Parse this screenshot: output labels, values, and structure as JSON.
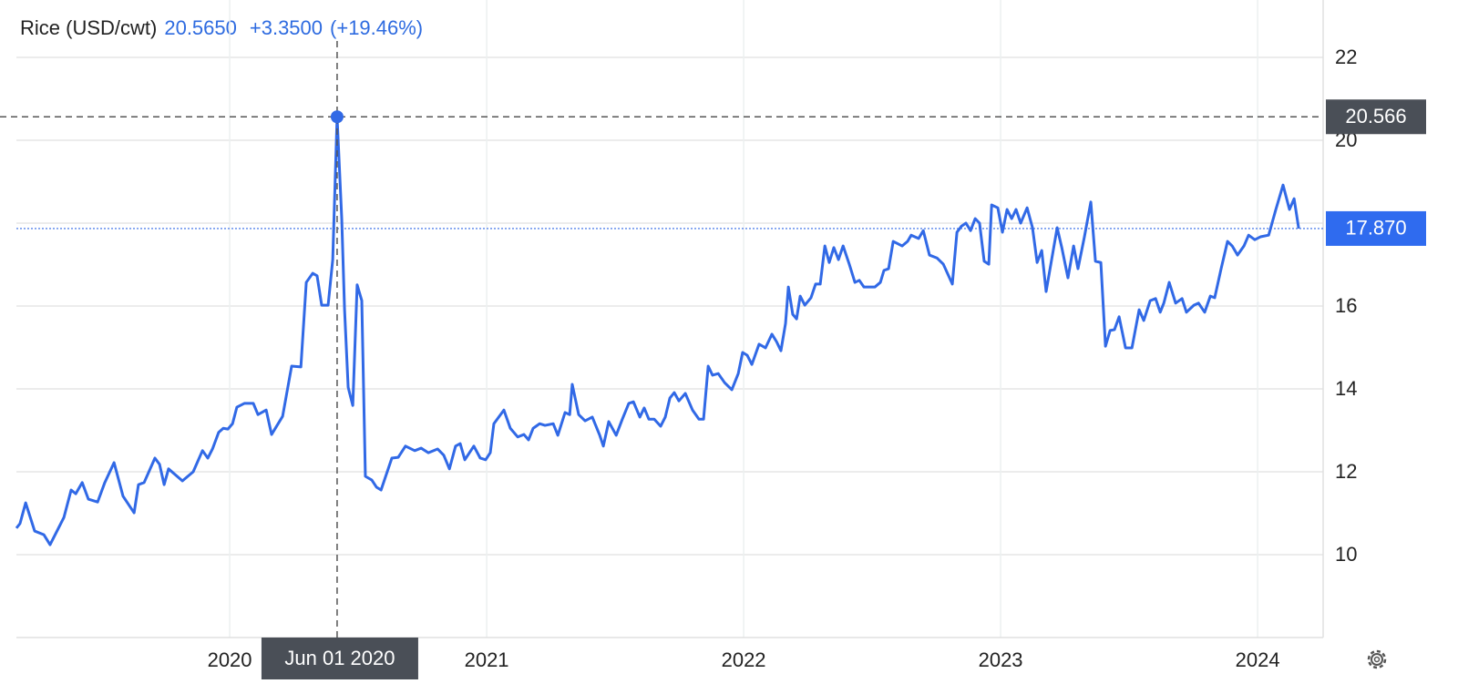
{
  "chart_data": {
    "type": "line",
    "title": "Rice (USD/cwt)",
    "quote": "20.5650",
    "change": "+3.3500",
    "change_pct": "(+19.46%)",
    "x": [
      2019.17,
      2019.184,
      2019.206,
      2019.241,
      2019.277,
      2019.301,
      2019.355,
      2019.383,
      2019.401,
      2019.426,
      2019.45,
      2019.486,
      2019.514,
      2019.55,
      2019.585,
      2019.628,
      2019.645,
      2019.667,
      2019.709,
      2019.727,
      2019.745,
      2019.762,
      2019.816,
      2019.858,
      2019.894,
      2019.915,
      2019.933,
      2019.957,
      2019.975,
      2019.993,
      2020.011,
      2020.028,
      2020.057,
      2020.092,
      2020.11,
      2020.142,
      2020.163,
      2020.206,
      2020.241,
      2020.277,
      2020.298,
      2020.323,
      2020.34,
      2020.358,
      2020.383,
      2020.401,
      2020.418,
      2020.436,
      2020.447,
      2020.461,
      2020.479,
      2020.496,
      2020.514,
      2020.528,
      2020.553,
      2020.571,
      2020.589,
      2020.631,
      2020.656,
      2020.684,
      2020.72,
      2020.745,
      2020.773,
      2020.809,
      2020.833,
      2020.855,
      2020.879,
      2020.897,
      2020.915,
      2020.95,
      2020.975,
      2020.996,
      2021.014,
      2021.028,
      2021.067,
      2021.092,
      2021.121,
      2021.145,
      2021.163,
      2021.181,
      2021.206,
      2021.227,
      2021.259,
      2021.277,
      2021.305,
      2021.323,
      2021.333,
      2021.358,
      2021.383,
      2021.411,
      2021.44,
      2021.454,
      2021.475,
      2021.504,
      2021.528,
      2021.553,
      2021.571,
      2021.596,
      2021.613,
      2021.631,
      2021.652,
      2021.677,
      2021.695,
      2021.713,
      2021.73,
      2021.748,
      2021.773,
      2021.801,
      2021.826,
      2021.844,
      2021.862,
      2021.879,
      2021.901,
      2021.926,
      2021.954,
      2021.979,
      2021.996,
      2022.014,
      2022.032,
      2022.06,
      2022.085,
      2022.11,
      2022.128,
      2022.145,
      2022.163,
      2022.174,
      2022.191,
      2022.206,
      2022.22,
      2022.238,
      2022.262,
      2022.28,
      2022.298,
      2022.316,
      2022.333,
      2022.351,
      2022.369,
      2022.387,
      2022.411,
      2022.433,
      2022.45,
      2022.468,
      2022.511,
      2022.532,
      2022.546,
      2022.564,
      2022.582,
      2022.617,
      2022.638,
      2022.652,
      2022.681,
      2022.699,
      2022.723,
      2022.752,
      2022.777,
      2022.812,
      2022.83,
      2022.848,
      2022.865,
      2022.883,
      2022.901,
      2022.918,
      2022.936,
      2022.954,
      2022.965,
      2022.989,
      2023.007,
      2023.025,
      2023.043,
      2023.06,
      2023.078,
      2023.103,
      2023.124,
      2023.142,
      2023.16,
      2023.177,
      2023.22,
      2023.238,
      2023.262,
      2023.284,
      2023.301,
      2023.326,
      2023.351,
      2023.369,
      2023.39,
      2023.408,
      2023.426,
      2023.443,
      2023.461,
      2023.486,
      2023.511,
      2023.539,
      2023.557,
      2023.582,
      2023.603,
      2023.621,
      2023.635,
      2023.656,
      2023.681,
      2023.706,
      2023.723,
      2023.752,
      2023.77,
      2023.794,
      2023.816,
      2023.833,
      2023.858,
      2023.883,
      2023.901,
      2023.922,
      2023.947,
      2023.965,
      2023.989,
      2024.011,
      2024.043,
      2024.071,
      2024.099,
      2024.124,
      2024.142,
      2024.16
    ],
    "series": [
      {
        "name": "Rice (USD/cwt)",
        "color": "#3169e6",
        "values": [
          10.64,
          10.75,
          11.25,
          10.57,
          10.48,
          10.24,
          10.9,
          11.56,
          11.47,
          11.74,
          11.34,
          11.27,
          11.74,
          12.22,
          11.41,
          11.01,
          11.69,
          11.74,
          12.33,
          12.18,
          11.69,
          12.07,
          11.78,
          12.0,
          12.51,
          12.33,
          12.55,
          12.95,
          13.05,
          13.03,
          13.16,
          13.56,
          13.65,
          13.65,
          13.38,
          13.49,
          12.9,
          13.34,
          14.55,
          14.53,
          16.57,
          16.79,
          16.73,
          16.02,
          16.02,
          17.12,
          20.565,
          18.11,
          15.91,
          14.04,
          13.6,
          16.51,
          16.13,
          11.89,
          11.8,
          11.63,
          11.56,
          12.33,
          12.35,
          12.62,
          12.51,
          12.57,
          12.46,
          12.55,
          12.4,
          12.07,
          12.62,
          12.68,
          12.29,
          12.62,
          12.33,
          12.29,
          12.46,
          13.16,
          13.49,
          13.05,
          12.84,
          12.9,
          12.77,
          13.05,
          13.16,
          13.12,
          13.16,
          12.88,
          13.43,
          13.38,
          14.11,
          13.38,
          13.23,
          13.32,
          12.88,
          12.62,
          13.21,
          12.88,
          13.27,
          13.65,
          13.69,
          13.32,
          13.54,
          13.27,
          13.27,
          13.1,
          13.32,
          13.78,
          13.91,
          13.71,
          13.89,
          13.49,
          13.27,
          13.27,
          14.55,
          14.33,
          14.37,
          14.15,
          13.98,
          14.37,
          14.88,
          14.81,
          14.59,
          15.08,
          14.99,
          15.32,
          15.14,
          14.92,
          15.58,
          16.46,
          15.8,
          15.69,
          16.24,
          16.02,
          16.2,
          16.53,
          16.53,
          17.45,
          17.05,
          17.41,
          17.12,
          17.45,
          17.01,
          16.57,
          16.62,
          16.46,
          16.46,
          16.57,
          16.86,
          16.9,
          17.56,
          17.45,
          17.56,
          17.71,
          17.63,
          17.82,
          17.23,
          17.16,
          17.01,
          16.53,
          17.78,
          17.93,
          18.0,
          17.82,
          18.11,
          18.0,
          17.08,
          17.01,
          18.44,
          18.37,
          17.78,
          18.33,
          18.11,
          18.33,
          18.0,
          18.37,
          17.89,
          17.05,
          17.34,
          16.35,
          17.89,
          17.41,
          16.68,
          17.45,
          16.9,
          17.67,
          18.51,
          17.08,
          17.05,
          15.03,
          15.41,
          15.43,
          15.74,
          14.99,
          14.99,
          15.91,
          15.65,
          16.13,
          16.18,
          15.85,
          16.07,
          16.57,
          16.07,
          16.18,
          15.85,
          16.02,
          16.07,
          15.85,
          16.24,
          16.2,
          16.9,
          17.56,
          17.45,
          17.23,
          17.45,
          17.71,
          17.6,
          17.67,
          17.71,
          18.33,
          18.92,
          18.33,
          18.59,
          17.87
        ]
      }
    ],
    "xlim": [
      2019.17,
      2024.255
    ],
    "xticks": [
      2020,
      2021,
      2022,
      2023,
      2024
    ],
    "ylim": [
      8,
      23.385
    ],
    "yticks": [
      10,
      12,
      14,
      16,
      18,
      20,
      22
    ],
    "grid": true,
    "crosshair": {
      "x": 2020.418,
      "x_label": "Jun 01 2020",
      "y": 20.566
    },
    "last_price": {
      "value": 17.87,
      "label": "17.870"
    }
  }
}
